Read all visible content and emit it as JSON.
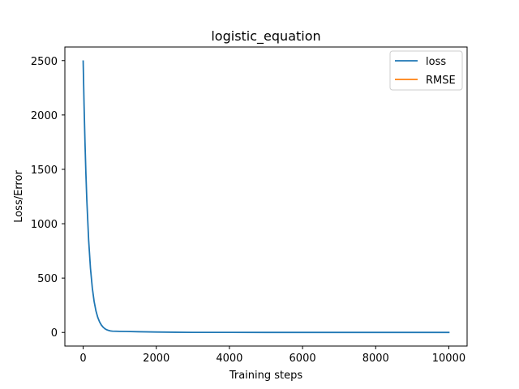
{
  "chart_data": {
    "type": "line",
    "title": "logistic_equation",
    "xlabel": "Training steps",
    "ylabel": "Loss/Error",
    "xlim": [
      -500,
      10500
    ],
    "ylim": [
      -125,
      2625
    ],
    "xticks": [
      0,
      2000,
      4000,
      6000,
      8000,
      10000
    ],
    "yticks": [
      0,
      500,
      1000,
      1500,
      2000,
      2500
    ],
    "grid": false,
    "legend": "top-right",
    "series": [
      {
        "name": "loss",
        "color": "#1f77b4",
        "x": [
          0,
          25,
          50,
          75,
          100,
          150,
          200,
          250,
          300,
          350,
          400,
          450,
          500,
          550,
          600,
          650,
          700,
          750,
          800,
          900,
          1000,
          1200,
          1500,
          2000,
          2500,
          3000,
          4000,
          5000,
          6000,
          7000,
          8000,
          9000,
          10000
        ],
        "y": [
          2495,
          2090,
          1750,
          1460,
          1220,
          850,
          590,
          410,
          285,
          198,
          138,
          96,
          67,
          47,
          33,
          24,
          18,
          14,
          12,
          11,
          10,
          9,
          7,
          4,
          2,
          1,
          0.5,
          0.3,
          0.2,
          0.2,
          0.1,
          0.1,
          0.1
        ]
      },
      {
        "name": "RMSE",
        "color": "#ff7f0e",
        "x": [],
        "y": []
      }
    ]
  }
}
